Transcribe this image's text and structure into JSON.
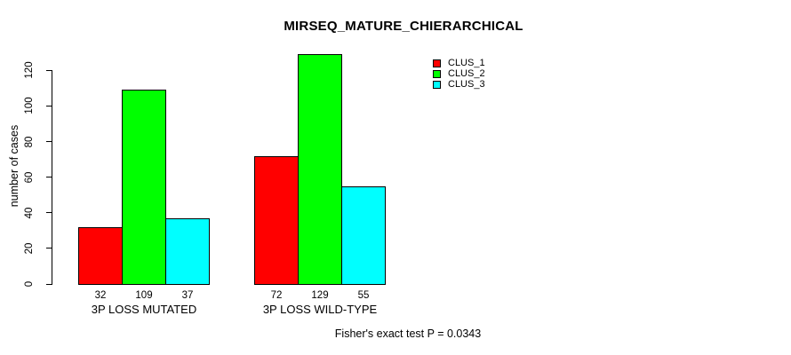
{
  "chart_data": {
    "type": "bar",
    "title": "MIRSEQ_MATURE_CHIERARCHICAL",
    "ylabel": "number of cases",
    "xlabel": "",
    "ylim": [
      0,
      120
    ],
    "yticks": [
      0,
      20,
      40,
      60,
      80,
      100,
      120
    ],
    "categories": [
      "3P LOSS MUTATED",
      "3P LOSS WILD-TYPE"
    ],
    "series": [
      {
        "name": "CLUS_1",
        "color": "#ff0000",
        "values": [
          32,
          72
        ]
      },
      {
        "name": "CLUS_2",
        "color": "#00ff00",
        "values": [
          109,
          129
        ]
      },
      {
        "name": "CLUS_3",
        "color": "#00ffff",
        "values": [
          37,
          55
        ]
      }
    ],
    "bar_value_labels": [
      [
        "32",
        "109",
        "37"
      ],
      [
        "72",
        "129",
        "55"
      ]
    ],
    "legend_position": "top-right",
    "grid": false,
    "annotation": "Fisher's exact test P = 0.0343"
  },
  "colors": {
    "background": "#ffffff",
    "axis": "#000000",
    "text": "#000000",
    "bar_border": "#000000"
  }
}
